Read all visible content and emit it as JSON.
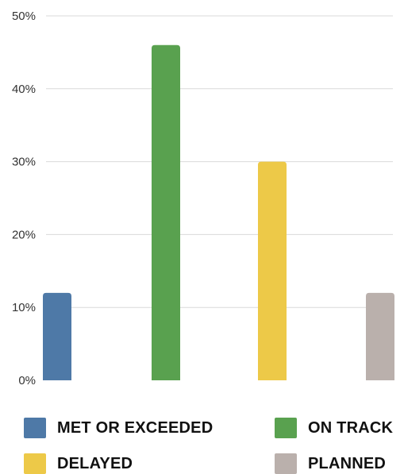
{
  "chart_data": {
    "type": "bar",
    "title": "",
    "xlabel": "",
    "ylabel": "",
    "categories": [
      "MET OR EXCEEDED",
      "ON TRACK",
      "DELAYED",
      "PLANNED"
    ],
    "values": [
      12,
      46,
      30,
      12
    ],
    "colors": [
      "#4e79a7",
      "#59a14f",
      "#edc948",
      "#bab0ac"
    ],
    "y_ticks": [
      "0%",
      "10%",
      "20%",
      "30%",
      "40%",
      "50%"
    ],
    "y_tick_values": [
      0,
      10,
      20,
      30,
      40,
      50
    ],
    "ylim": [
      0,
      50
    ],
    "grid": true,
    "legend_position": "bottom"
  }
}
